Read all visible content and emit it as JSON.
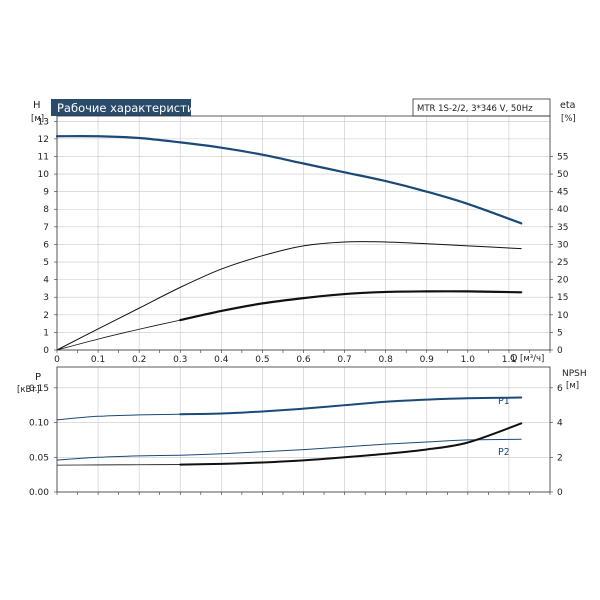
{
  "chart_data": [
    {
      "type": "line",
      "title": "Рабочие характеристики насоса",
      "model_label": "MTR 1S-2/2, 3*346 V, 50Hz",
      "xlabel": "Q",
      "xunit": "[м³/ч]",
      "ylabel": "H",
      "yunit": "[м]",
      "y2label": "eta",
      "y2unit": "[%]",
      "xlim": [
        0,
        1.2
      ],
      "ylim": [
        0,
        13.3
      ],
      "y2lim": [
        0,
        66.5
      ],
      "x_ticks": [
        "0",
        "0.1",
        "0.2",
        "0.3",
        "0.4",
        "0.5",
        "0.6",
        "0.7",
        "0.8",
        "0.9",
        "1.0",
        "1.1"
      ],
      "y_ticks": [
        "0",
        "1",
        "2",
        "3",
        "4",
        "5",
        "6",
        "7",
        "8",
        "9",
        "10",
        "11",
        "12",
        "13"
      ],
      "y2_ticks": [
        "0",
        "5",
        "10",
        "15",
        "20",
        "25",
        "30",
        "35",
        "40",
        "45",
        "50",
        "55"
      ],
      "grid": true,
      "series": [
        {
          "key": "H",
          "axis": "left",
          "color": "#1a4a78",
          "width": 2.2,
          "x": [
            0,
            0.1,
            0.2,
            0.3,
            0.4,
            0.5,
            0.6,
            0.7,
            0.8,
            0.9,
            1.0,
            1.13
          ],
          "y": [
            12.15,
            12.15,
            12.05,
            11.8,
            11.5,
            11.1,
            10.6,
            10.1,
            9.6,
            9.0,
            8.3,
            7.2
          ]
        },
        {
          "key": "eta",
          "axis": "right",
          "color": "#111111",
          "width": 1.0,
          "x": [
            0,
            0.1,
            0.2,
            0.3,
            0.4,
            0.5,
            0.6,
            0.7,
            0.8,
            0.9,
            1.0,
            1.13
          ],
          "y": [
            0,
            6.0,
            11.9,
            17.8,
            23.0,
            26.8,
            29.6,
            30.7,
            30.7,
            30.2,
            29.6,
            28.8
          ]
        },
        {
          "key": "eta_thin",
          "axis": "left",
          "color": "#111111",
          "width": 0.8,
          "x": [
            0,
            0.1,
            0.2,
            0.3
          ],
          "y": [
            0,
            0.62,
            1.18,
            1.7
          ]
        },
        {
          "key": "eta_op",
          "axis": "left",
          "color": "#111111",
          "width": 2.2,
          "x": [
            0.3,
            0.4,
            0.5,
            0.6,
            0.7,
            0.8,
            0.9,
            1.0,
            1.13
          ],
          "y": [
            1.7,
            2.22,
            2.65,
            2.95,
            3.18,
            3.3,
            3.33,
            3.33,
            3.28
          ]
        }
      ]
    },
    {
      "type": "line",
      "ylabel": "P",
      "yunit": "[кВт]",
      "y2label": "NPSH",
      "y2unit": "[м]",
      "xlim": [
        0,
        1.2
      ],
      "ylim": [
        0,
        0.18
      ],
      "y2lim": [
        0,
        7.2
      ],
      "y_ticks": [
        "0.00",
        "0.05",
        "0.10",
        "0.15"
      ],
      "y2_ticks": [
        "0",
        "2",
        "4",
        "6"
      ],
      "grid": true,
      "series": [
        {
          "key": "P1",
          "name": "P1",
          "axis": "left",
          "color": "#1a4a78",
          "width": 1.0,
          "x": [
            0,
            0.1,
            0.2,
            0.3
          ],
          "y": [
            0.104,
            0.109,
            0.111,
            0.112
          ]
        },
        {
          "key": "P1_op",
          "axis": "left",
          "color": "#1a4a78",
          "width": 2.0,
          "x": [
            0.3,
            0.4,
            0.5,
            0.6,
            0.7,
            0.8,
            0.9,
            1.0,
            1.13
          ],
          "y": [
            0.112,
            0.113,
            0.116,
            0.12,
            0.125,
            0.13,
            0.133,
            0.135,
            0.136
          ]
        },
        {
          "key": "P2",
          "name": "P2",
          "axis": "left",
          "color": "#1a4a78",
          "width": 1.0,
          "x": [
            0,
            0.1,
            0.2,
            0.3,
            0.4,
            0.5,
            0.6,
            0.7,
            0.8,
            0.9,
            1.0,
            1.13
          ],
          "y": [
            0.046,
            0.05,
            0.052,
            0.053,
            0.055,
            0.058,
            0.061,
            0.065,
            0.069,
            0.072,
            0.075,
            0.076
          ]
        },
        {
          "key": "NPSH_thin",
          "axis": "right",
          "color": "#111111",
          "width": 0.8,
          "x": [
            0,
            0.1,
            0.2,
            0.3
          ],
          "y": [
            1.55,
            1.56,
            1.57,
            1.58
          ]
        },
        {
          "key": "NPSH",
          "axis": "right",
          "color": "#111111",
          "width": 2.0,
          "x": [
            0.3,
            0.4,
            0.5,
            0.6,
            0.7,
            0.8,
            0.9,
            1.0,
            1.13
          ],
          "y": [
            1.58,
            1.62,
            1.7,
            1.82,
            2.0,
            2.2,
            2.45,
            2.85,
            3.95
          ]
        }
      ]
    }
  ]
}
